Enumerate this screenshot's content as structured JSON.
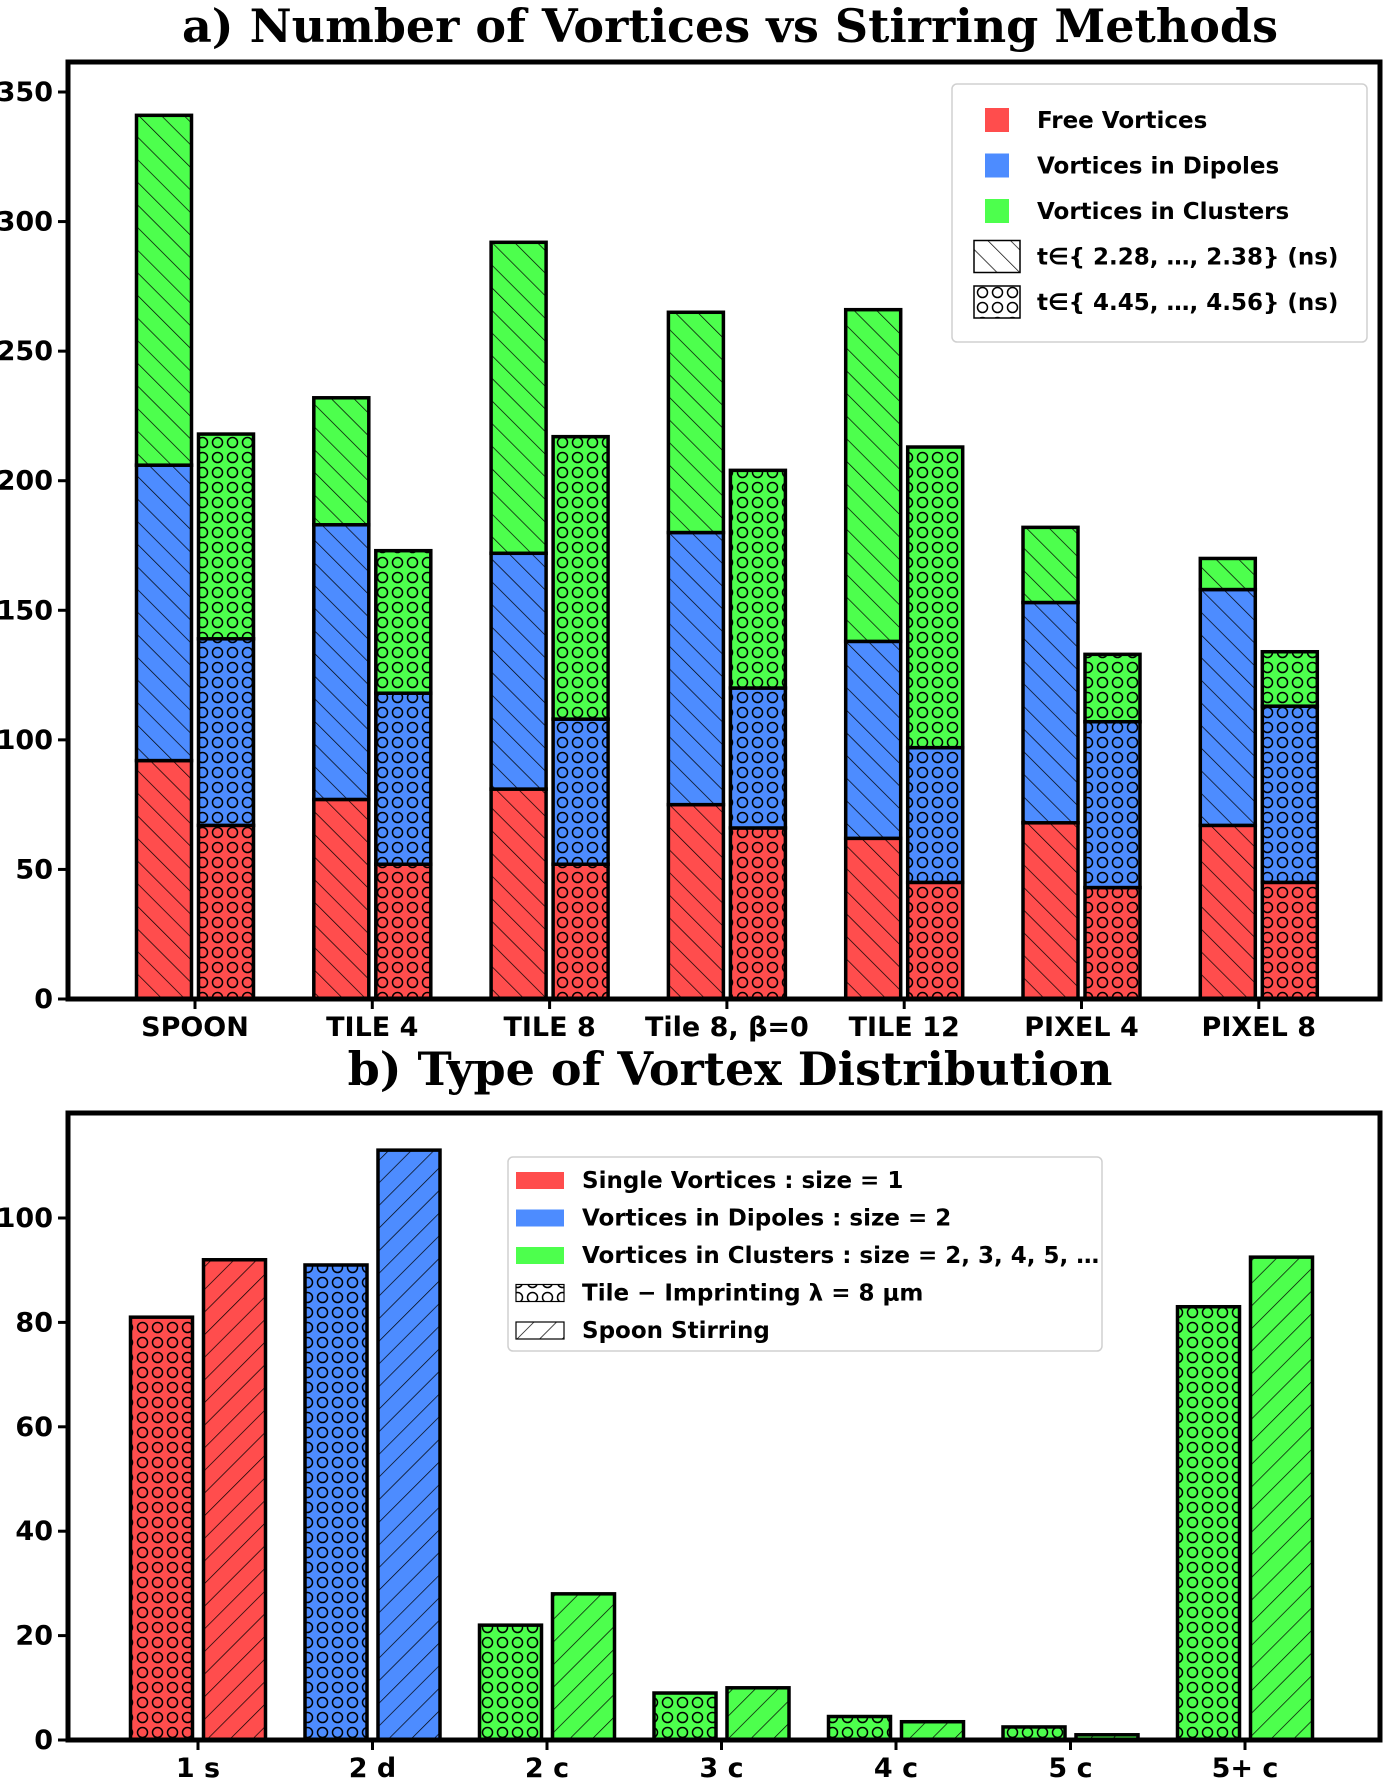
{
  "colors": {
    "free": "#ff4d4d",
    "dipole": "#4d8cff",
    "cluster": "#4dff4d",
    "edge": "#000000"
  },
  "chart_data": [
    {
      "type": "bar",
      "stacked": true,
      "title": "a) Number of Vortices vs Stirring Methods",
      "xlabel": "",
      "ylabel": "",
      "ylim": [
        0,
        350
      ],
      "yticks": [
        0,
        50,
        100,
        150,
        200,
        250,
        300,
        350
      ],
      "categories": [
        "SPOON",
        "TILE 4",
        "TILE 8",
        "Tile 8, β=0",
        "TILE 12",
        "PIXEL 4",
        "PIXEL 8"
      ],
      "time_groups": [
        {
          "label": "t∈{ 2.28, …, 2.38} (ns)",
          "hatch": "diagonal",
          "series": [
            {
              "name": "Free Vortices",
              "color": "#ff4d4d",
              "values": [
                92,
                77,
                81,
                75,
                62,
                68,
                67
              ]
            },
            {
              "name": "Vortices in Dipoles",
              "color": "#4d8cff",
              "values": [
                114,
                106,
                91,
                105,
                76,
                85,
                91
              ]
            },
            {
              "name": "Vortices in Clusters",
              "color": "#4dff4d",
              "values": [
                135,
                49,
                120,
                85,
                128,
                29,
                12
              ]
            }
          ]
        },
        {
          "label": "t∈{ 4.45, …, 4.56} (ns)",
          "hatch": "circles",
          "series": [
            {
              "name": "Free Vortices",
              "color": "#ff4d4d",
              "values": [
                67,
                52,
                52,
                66,
                45,
                43,
                45
              ]
            },
            {
              "name": "Vortices in Dipoles",
              "color": "#4d8cff",
              "values": [
                72,
                66,
                56,
                54,
                52,
                64,
                68
              ]
            },
            {
              "name": "Vortices in Clusters",
              "color": "#4dff4d",
              "values": [
                79,
                55,
                109,
                84,
                116,
                26,
                21
              ]
            }
          ]
        }
      ],
      "legend": {
        "position": "top-right",
        "entries": [
          {
            "label": "Free Vortices",
            "kind": "color",
            "color": "#ff4d4d"
          },
          {
            "label": "Vortices in Dipoles",
            "kind": "color",
            "color": "#4d8cff"
          },
          {
            "label": "Vortices in Clusters",
            "kind": "color",
            "color": "#4dff4d"
          },
          {
            "label": "t∈{ 2.28, …, 2.38} (ns)",
            "kind": "hatch",
            "hatch": "diagonal"
          },
          {
            "label": "t∈{ 4.45, …, 4.56} (ns)",
            "kind": "hatch",
            "hatch": "circles"
          }
        ]
      }
    },
    {
      "type": "bar",
      "grouped": true,
      "title": "b) Type of Vortex Distribution",
      "xlabel": "",
      "ylabel": "",
      "ylim": [
        0,
        118
      ],
      "yticks": [
        0,
        20,
        40,
        60,
        80,
        100
      ],
      "categories": [
        "1 s",
        "2 d",
        "2 c",
        "3 c",
        "4 c",
        "5 c",
        "5+ c"
      ],
      "category_colors": [
        "#ff4d4d",
        "#4d8cff",
        "#4dff4d",
        "#4dff4d",
        "#4dff4d",
        "#4dff4d",
        "#4dff4d"
      ],
      "series": [
        {
          "name": "Tile − Imprinting λ = 8 μm",
          "hatch": "circles",
          "values": [
            81,
            91,
            22,
            9,
            4.5,
            2.5,
            83
          ]
        },
        {
          "name": "Spoon Stirring",
          "hatch": "diagonal",
          "values": [
            92,
            113,
            28,
            10,
            3.5,
            1,
            92.5
          ]
        }
      ],
      "legend": {
        "position": "top-center",
        "entries": [
          {
            "label": "Single Vortices :  size =  1",
            "kind": "color",
            "color": "#ff4d4d"
          },
          {
            "label": "Vortices in Dipoles :  size =  2",
            "kind": "color",
            "color": "#4d8cff"
          },
          {
            "label": "Vortices in Clusters :  size =  2,  3,  4,  5,  …",
            "kind": "color",
            "color": "#4dff4d"
          },
          {
            "label": "Tile − Imprinting λ  =  8 μm",
            "kind": "hatch",
            "hatch": "circles"
          },
          {
            "label": "Spoon Stirring",
            "kind": "hatch",
            "hatch": "diagonal"
          }
        ]
      }
    }
  ]
}
